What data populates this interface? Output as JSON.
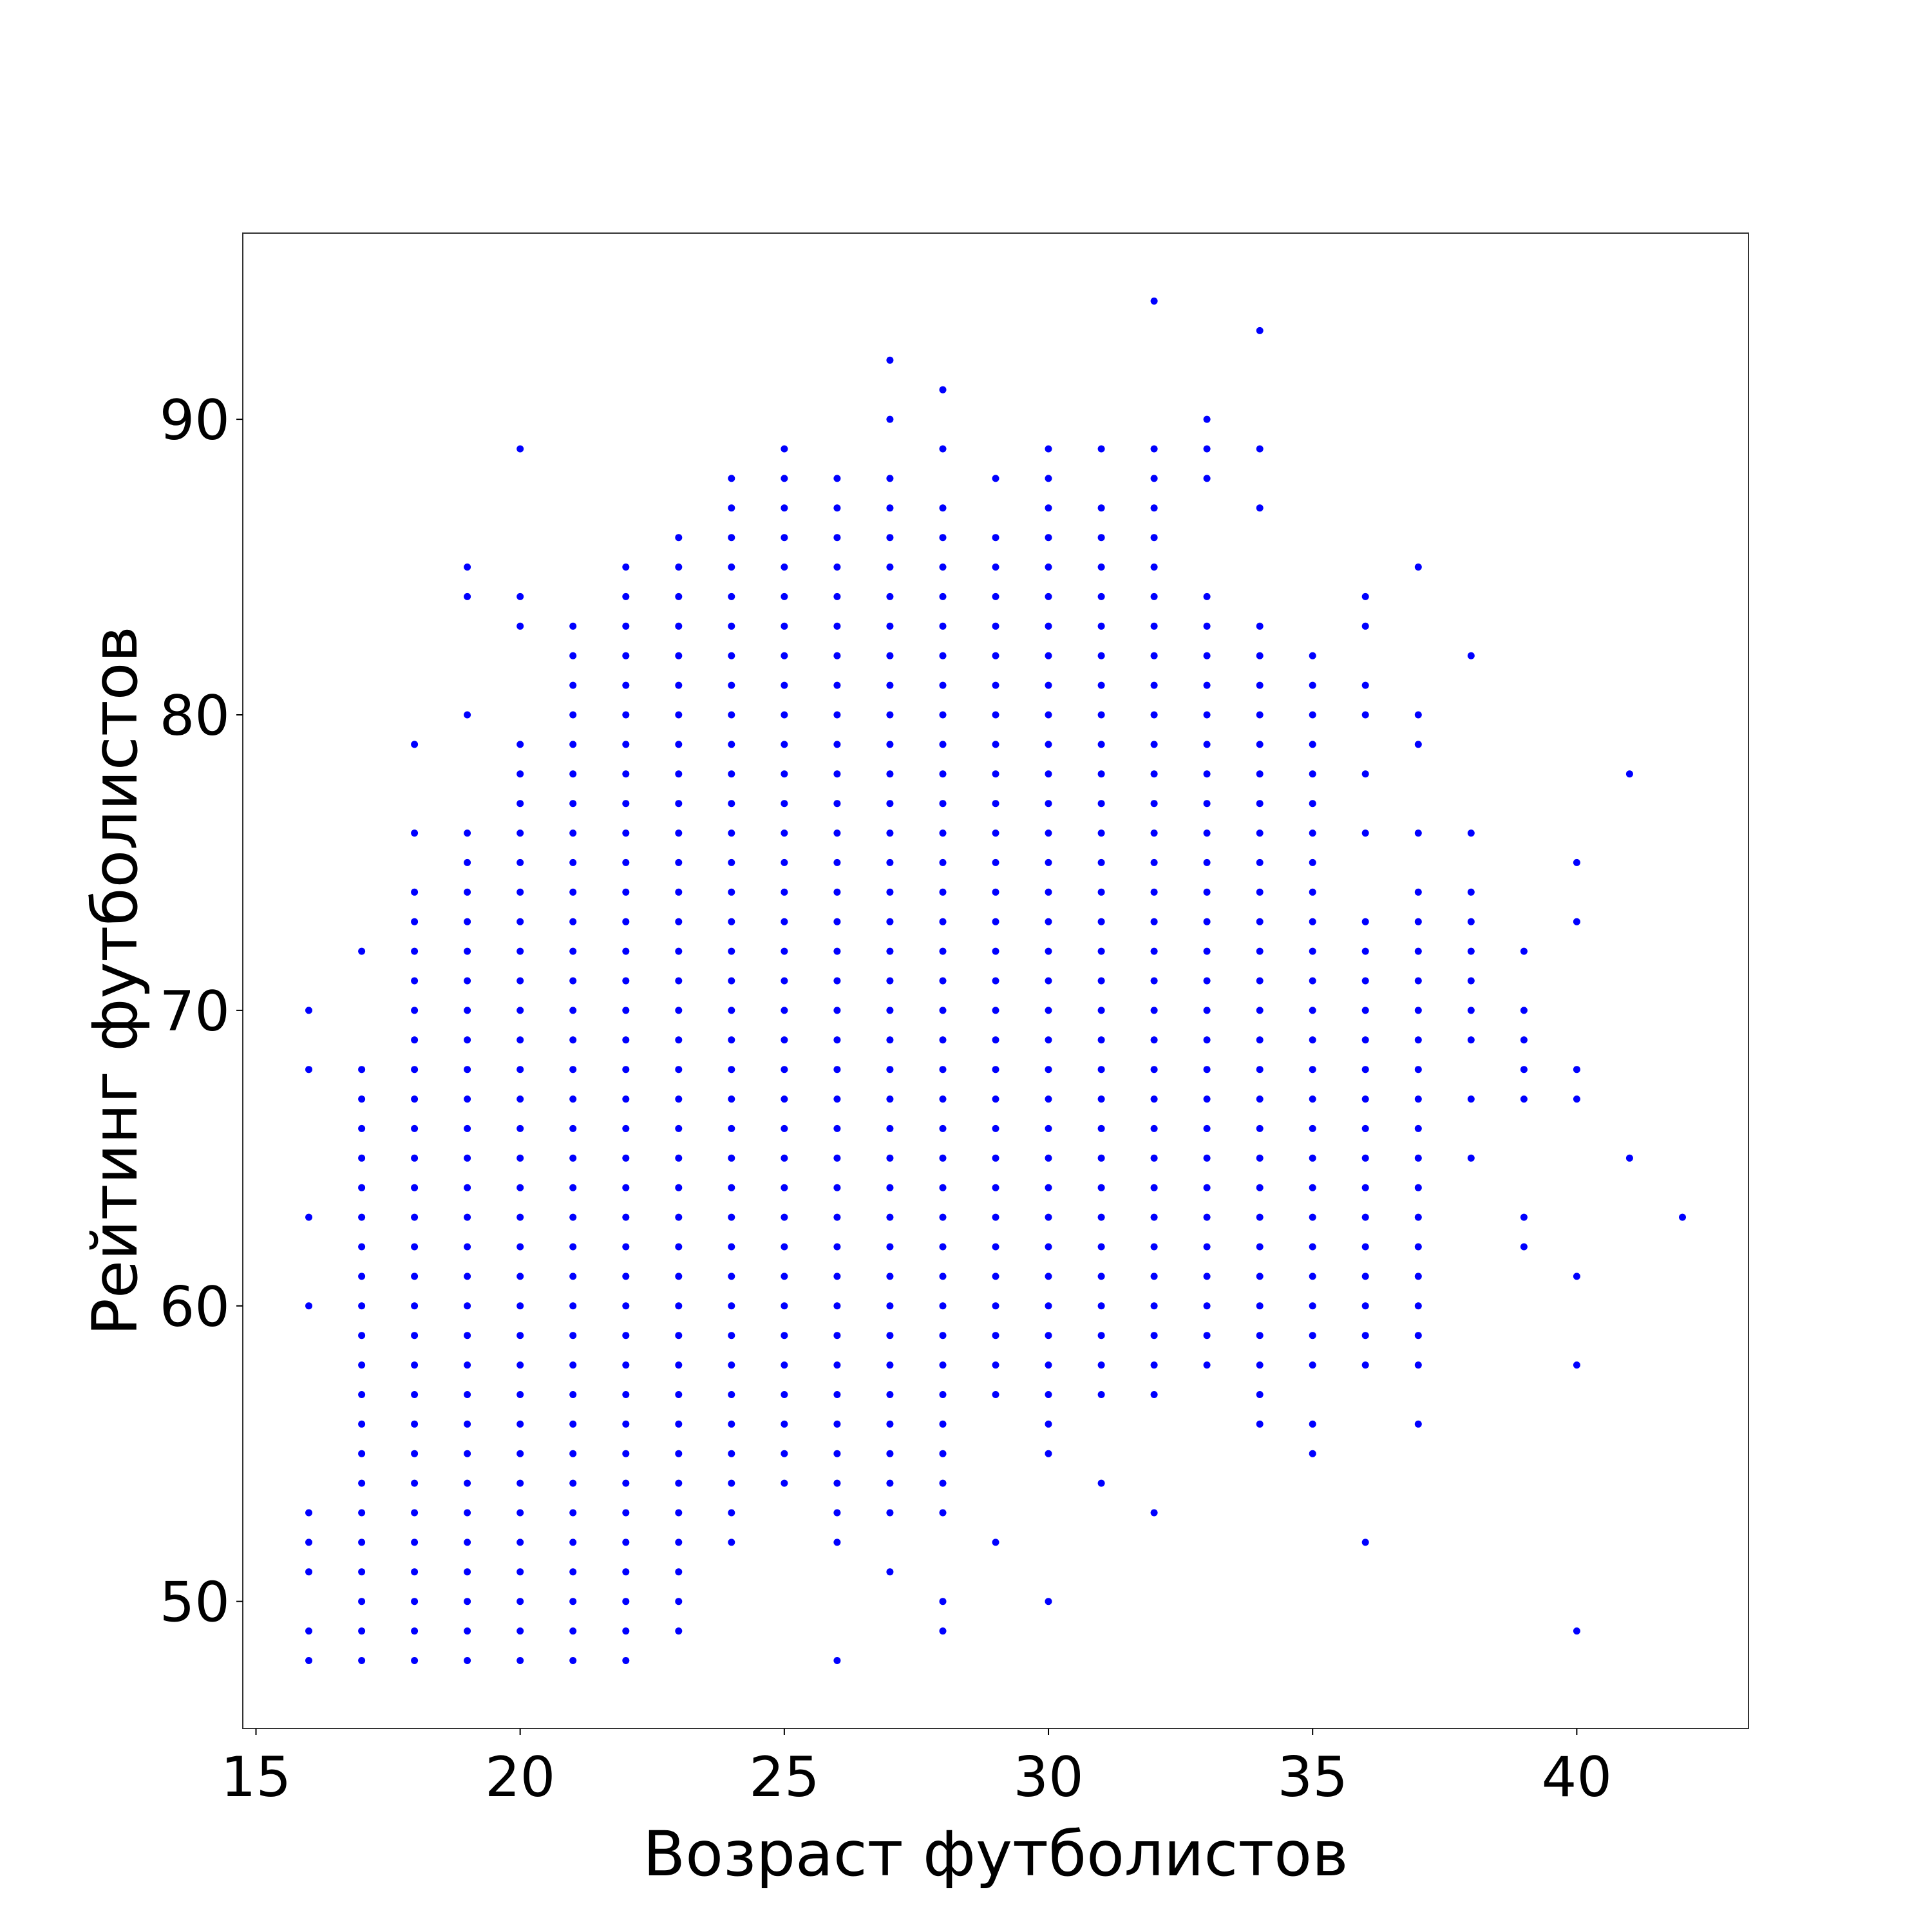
{
  "chart_data": {
    "type": "scatter",
    "title": "",
    "xlabel": "Возраст футболистов",
    "ylabel": "Рейтинг футболистов",
    "xlim": [
      14.75,
      43.25
    ],
    "ylim": [
      45.7,
      96.3
    ],
    "xticks": [
      15,
      20,
      25,
      30,
      35,
      40
    ],
    "yticks": [
      50,
      60,
      70,
      80,
      90
    ],
    "grid": false,
    "marker_color": "#0000ff",
    "columns": [
      {
        "x": 16,
        "y": [
          48,
          49,
          51,
          52,
          53,
          60,
          63,
          68,
          70
        ]
      },
      {
        "x": 17,
        "y": [
          [
            48,
            68
          ],
          72
        ]
      },
      {
        "x": 18,
        "y": [
          [
            48,
            74
          ],
          76,
          79
        ]
      },
      {
        "x": 19,
        "y": [
          [
            48,
            76
          ],
          80,
          84,
          85
        ]
      },
      {
        "x": 20,
        "y": [
          [
            48,
            79
          ],
          83,
          84,
          89
        ]
      },
      {
        "x": 21,
        "y": [
          [
            48,
            83
          ]
        ]
      },
      {
        "x": 22,
        "y": [
          [
            48,
            85
          ]
        ]
      },
      {
        "x": 23,
        "y": [
          [
            49,
            86
          ]
        ]
      },
      {
        "x": 24,
        "y": [
          [
            52,
            88
          ]
        ]
      },
      {
        "x": 25,
        "y": [
          [
            54,
            89
          ]
        ]
      },
      {
        "x": 26,
        "y": [
          48,
          52,
          [
            53,
            88
          ]
        ]
      },
      {
        "x": 27,
        "y": [
          51,
          [
            53,
            88
          ],
          90,
          92
        ]
      },
      {
        "x": 28,
        "y": [
          49,
          50,
          [
            53,
            87
          ],
          89,
          91
        ]
      },
      {
        "x": 29,
        "y": [
          52,
          [
            57,
            86
          ],
          88
        ]
      },
      {
        "x": 30,
        "y": [
          50,
          [
            55,
            89
          ]
        ]
      },
      {
        "x": 31,
        "y": [
          54,
          [
            57,
            87
          ],
          89
        ]
      },
      {
        "x": 32,
        "y": [
          53,
          [
            57,
            89
          ],
          94
        ]
      },
      {
        "x": 33,
        "y": [
          [
            58,
            84
          ],
          88,
          89,
          90
        ]
      },
      {
        "x": 34,
        "y": [
          [
            56,
            83
          ],
          87,
          89,
          93
        ]
      },
      {
        "x": 35,
        "y": [
          55,
          56,
          [
            58,
            82
          ]
        ]
      },
      {
        "x": 36,
        "y": [
          52,
          [
            58,
            73
          ],
          76,
          78,
          80,
          81,
          83,
          84
        ]
      },
      {
        "x": 37,
        "y": [
          56,
          [
            58,
            74
          ],
          76,
          79,
          80,
          85
        ]
      },
      {
        "x": 38,
        "y": [
          65,
          67,
          [
            69,
            74
          ],
          76,
          82
        ]
      },
      {
        "x": 39,
        "y": [
          62,
          63,
          [
            67,
            70
          ],
          72
        ]
      },
      {
        "x": 40,
        "y": [
          49,
          58,
          61,
          67,
          68,
          73,
          75
        ]
      },
      {
        "x": 41,
        "y": [
          65,
          78
        ]
      },
      {
        "x": 42,
        "y": [
          63
        ]
      }
    ]
  }
}
